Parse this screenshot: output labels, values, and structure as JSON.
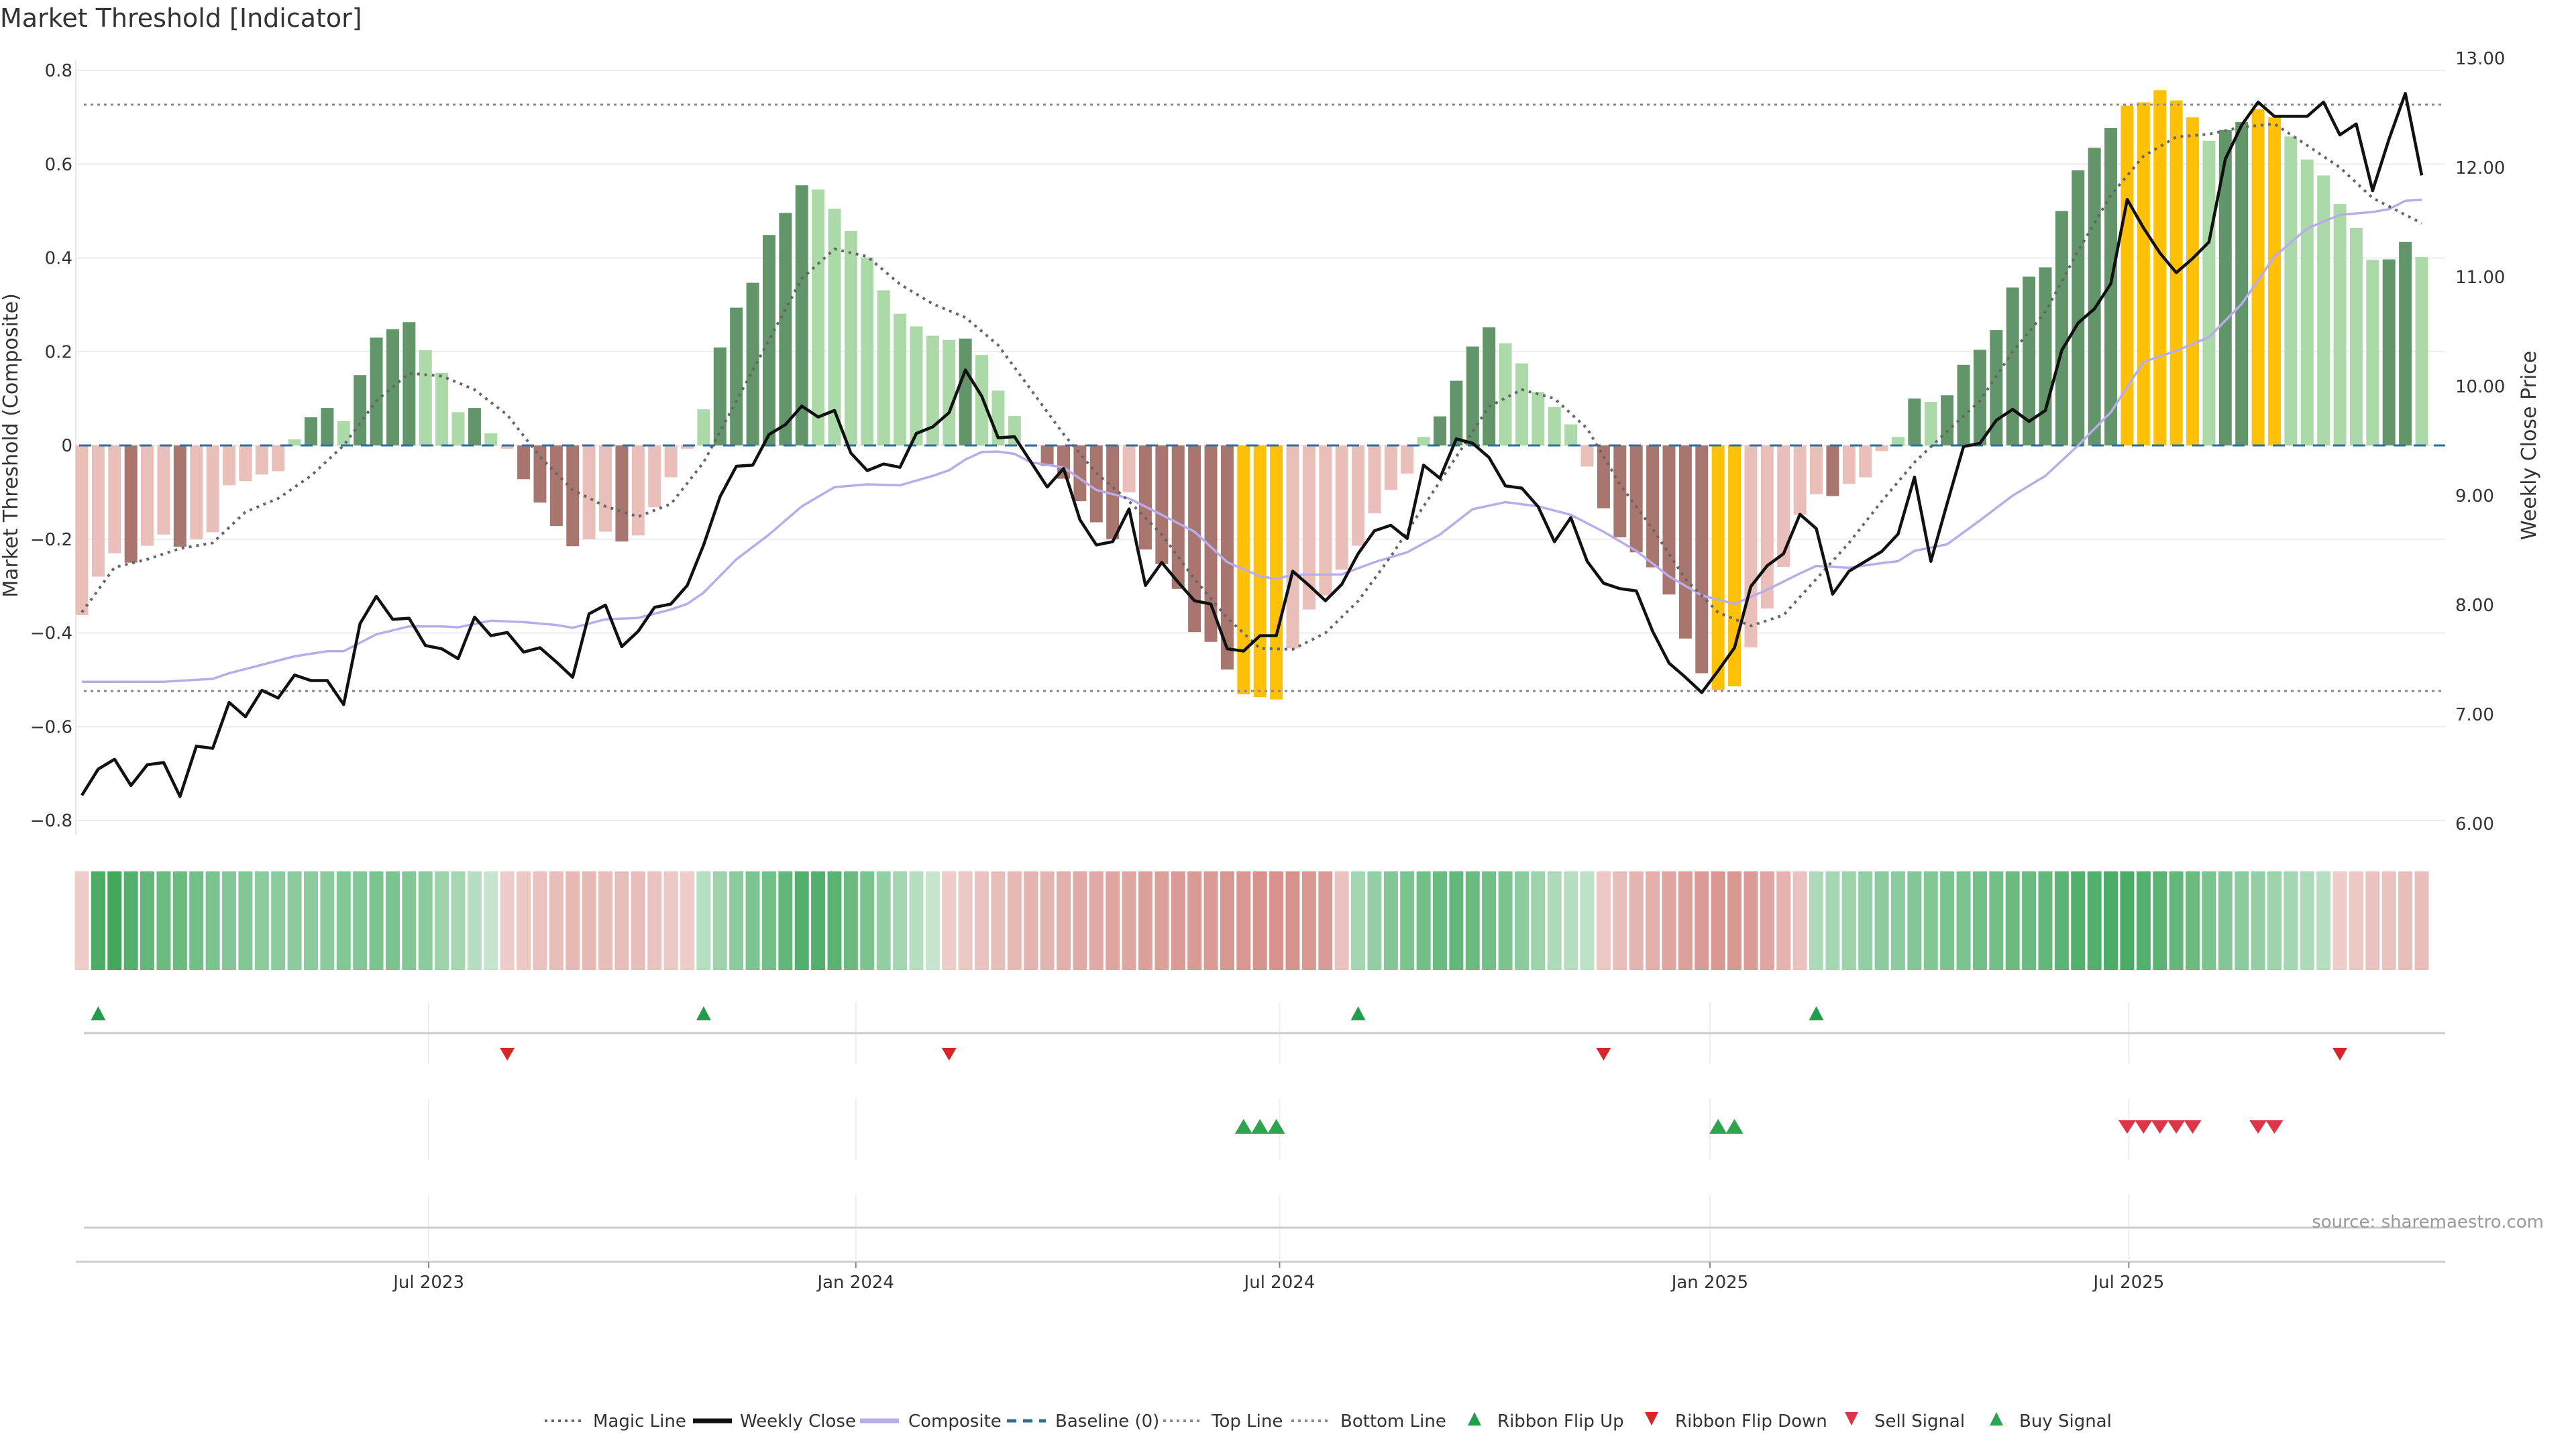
{
  "chart_data": {
    "type": "bar",
    "title": "Market Threshold [Indicator]",
    "ylabel": "Market Threshold (Composite)",
    "y2label": "Weekly Close Price",
    "ylim": [
      -0.8,
      0.8
    ],
    "y2lim": [
      6.0,
      13.0
    ],
    "y_ticks": [
      "0.8",
      "0.6",
      "0.4",
      "0.2",
      "0",
      "−0.2",
      "−0.4",
      "−0.6",
      "−0.8"
    ],
    "y_tick_values": [
      0.8,
      0.6,
      0.4,
      0.2,
      0,
      -0.2,
      -0.4,
      -0.6,
      -0.8
    ],
    "y2_ticks": [
      "13.00",
      "12.00",
      "11.00",
      "10.00",
      "9.00",
      "8.00",
      "7.00",
      "6.00"
    ],
    "y2_tick_values": [
      13,
      12,
      11,
      10,
      9,
      8,
      7,
      6
    ],
    "x_ticks": [
      {
        "label": "Jul 2023",
        "week": 21.2
      },
      {
        "label": "Jan 2024",
        "week": 47.3
      },
      {
        "label": "Jul 2024",
        "week": 73.2
      },
      {
        "label": "Jan 2025",
        "week": 99.5
      },
      {
        "label": "Jul 2025",
        "week": 125.1
      }
    ],
    "top_line": 0.727,
    "bottom_line": -0.524,
    "baseline": 0,
    "bar_values": [
      -0.362,
      -0.28,
      -0.23,
      -0.25,
      -0.214,
      -0.19,
      -0.216,
      -0.2,
      -0.185,
      -0.085,
      -0.076,
      -0.062,
      -0.055,
      0.013,
      0.06,
      0.08,
      0.052,
      0.15,
      0.23,
      0.248,
      0.263,
      0.203,
      0.155,
      0.071,
      0.08,
      0.026,
      -0.007,
      -0.072,
      -0.122,
      -0.172,
      -0.215,
      -0.2,
      -0.184,
      -0.205,
      -0.192,
      -0.132,
      -0.068,
      -0.007,
      0.077,
      0.209,
      0.294,
      0.347,
      0.449,
      0.496,
      0.555,
      0.546,
      0.505,
      0.458,
      0.401,
      0.331,
      0.281,
      0.254,
      0.234,
      0.225,
      0.228,
      0.193,
      0.117,
      0.063,
      -0.003,
      -0.044,
      -0.071,
      -0.119,
      -0.164,
      -0.2,
      -0.1,
      -0.222,
      -0.253,
      -0.306,
      -0.398,
      -0.419,
      -0.478,
      -0.531,
      -0.537,
      -0.542,
      -0.433,
      -0.35,
      -0.32,
      -0.265,
      -0.214,
      -0.145,
      -0.095,
      -0.06,
      0.018,
      0.062,
      0.138,
      0.211,
      0.252,
      0.218,
      0.175,
      0.114,
      0.082,
      0.045,
      -0.045,
      -0.134,
      -0.196,
      -0.228,
      -0.26,
      -0.318,
      -0.412,
      -0.486,
      -0.522,
      -0.514,
      -0.431,
      -0.348,
      -0.259,
      -0.148,
      -0.104,
      -0.108,
      -0.082,
      -0.068,
      -0.012,
      0.018,
      0.1,
      0.093,
      0.107,
      0.172,
      0.204,
      0.246,
      0.337,
      0.36,
      0.38,
      0.5,
      0.587,
      0.635,
      0.677,
      0.725,
      0.732,
      0.758,
      0.736,
      0.7,
      0.65,
      0.673,
      0.69,
      0.717,
      0.7,
      0.659,
      0.61,
      0.576,
      0.515,
      0.464,
      0.396,
      0.397,
      0.434,
      0.402
    ],
    "bar_classes": "rrrRrrRrrrrrrgGGgGGGGgggGgrRRRRrrRrrrrgGGGGGGgggggggggGgggrRRRRRrRRRRRRYYYrrrrrrrrgGGGGgggggrRRRRRRRYYrrrrrRrrrgGgGGGGGGGGGGGYYYYYgGGYYggggggGGg",
    "bar_class_colors": {
      "G": "#62956a",
      "g": "#acd9a8",
      "R": "#a9766f",
      "r": "#ebbfb9",
      "Y": "#ffc107"
    },
    "weekly_close": [
      6.26,
      6.5,
      6.59,
      6.35,
      6.54,
      6.56,
      6.25,
      6.71,
      6.69,
      7.11,
      6.98,
      7.22,
      7.15,
      7.36,
      7.31,
      7.31,
      7.09,
      7.83,
      8.08,
      7.87,
      7.88,
      7.63,
      7.6,
      7.51,
      7.89,
      7.72,
      7.75,
      7.57,
      7.61,
      7.48,
      7.34,
      7.92,
      8.0,
      7.62,
      7.76,
      7.98,
      8.01,
      8.18,
      8.55,
      8.99,
      9.27,
      9.28,
      9.56,
      9.65,
      9.82,
      9.72,
      9.78,
      9.39,
      9.23,
      9.29,
      9.26,
      9.57,
      9.63,
      9.76,
      10.15,
      9.91,
      9.53,
      9.54,
      9.31,
      9.08,
      9.25,
      8.78,
      8.55,
      8.58,
      8.88,
      8.18,
      8.39,
      8.21,
      8.04,
      8.01,
      7.6,
      7.58,
      7.72,
      7.72,
      8.31,
      8.18,
      8.04,
      8.19,
      8.47,
      8.68,
      8.73,
      8.61,
      9.28,
      9.16,
      9.52,
      9.48,
      9.35,
      9.09,
      9.07,
      8.9,
      8.58,
      8.8,
      8.4,
      8.2,
      8.15,
      8.13,
      7.76,
      7.47,
      7.34,
      7.2,
      7.4,
      7.61,
      8.17,
      8.36,
      8.47,
      8.83,
      8.7,
      8.1,
      8.31,
      8.4,
      8.49,
      8.65,
      9.17,
      8.4,
      8.93,
      9.45,
      9.48,
      9.69,
      9.79,
      9.68,
      9.78,
      10.33,
      10.58,
      10.71,
      10.94,
      11.71,
      11.45,
      11.22,
      11.04,
      11.17,
      11.32,
      12.08,
      12.39,
      12.6,
      12.47,
      12.47,
      12.47,
      12.6,
      12.3,
      12.4,
      11.79,
      12.26,
      12.68,
      11.93
    ],
    "magic_line": [
      [
        0,
        -0.356
      ],
      [
        2,
        -0.26
      ],
      [
        4,
        -0.243
      ],
      [
        6,
        -0.22
      ],
      [
        8,
        -0.208
      ],
      [
        10,
        -0.142
      ],
      [
        12,
        -0.113
      ],
      [
        14,
        -0.065
      ],
      [
        16,
        0
      ],
      [
        18,
        0.095
      ],
      [
        20,
        0.154
      ],
      [
        22,
        0.148
      ],
      [
        24,
        0.119
      ],
      [
        26,
        0.065
      ],
      [
        28,
        -0.024
      ],
      [
        30,
        -0.095
      ],
      [
        32,
        -0.13
      ],
      [
        34,
        -0.152
      ],
      [
        36,
        -0.125
      ],
      [
        38,
        -0.036
      ],
      [
        40,
        0.095
      ],
      [
        42,
        0.225
      ],
      [
        44,
        0.356
      ],
      [
        46,
        0.419
      ],
      [
        48,
        0.403
      ],
      [
        50,
        0.344
      ],
      [
        52,
        0.302
      ],
      [
        54,
        0.273
      ],
      [
        56,
        0.214
      ],
      [
        58,
        0.119
      ],
      [
        60,
        0.024
      ],
      [
        62,
        -0.059
      ],
      [
        64,
        -0.119
      ],
      [
        66,
        -0.19
      ],
      [
        68,
        -0.285
      ],
      [
        70,
        -0.368
      ],
      [
        72,
        -0.433
      ],
      [
        74,
        -0.435
      ],
      [
        76,
        -0.4
      ],
      [
        78,
        -0.332
      ],
      [
        80,
        -0.237
      ],
      [
        82,
        -0.13
      ],
      [
        84,
        -0.024
      ],
      [
        86,
        0.083
      ],
      [
        88,
        0.119
      ],
      [
        90,
        0.1
      ],
      [
        92,
        0.036
      ],
      [
        94,
        -0.083
      ],
      [
        96,
        -0.178
      ],
      [
        98,
        -0.285
      ],
      [
        100,
        -0.356
      ],
      [
        102,
        -0.385
      ],
      [
        104,
        -0.362
      ],
      [
        106,
        -0.285
      ],
      [
        108,
        -0.208
      ],
      [
        110,
        -0.119
      ],
      [
        112,
        -0.036
      ],
      [
        114,
        0.03
      ],
      [
        116,
        0.095
      ],
      [
        118,
        0.2
      ],
      [
        120,
        0.285
      ],
      [
        122,
        0.415
      ],
      [
        124,
        0.534
      ],
      [
        126,
        0.617
      ],
      [
        128,
        0.658
      ],
      [
        130,
        0.664
      ],
      [
        132,
        0.679
      ],
      [
        134,
        0.686
      ],
      [
        136,
        0.64
      ],
      [
        138,
        0.593
      ],
      [
        140,
        0.528
      ],
      [
        142,
        0.492
      ],
      [
        143,
        0.474
      ]
    ],
    "composite_line": [
      [
        0,
        -0.504
      ],
      [
        5,
        -0.504
      ],
      [
        7,
        -0.5
      ],
      [
        8,
        -0.498
      ],
      [
        9,
        -0.486
      ],
      [
        11,
        -0.468
      ],
      [
        13,
        -0.45
      ],
      [
        15,
        -0.439
      ],
      [
        16,
        -0.439
      ],
      [
        18,
        -0.403
      ],
      [
        20,
        -0.386
      ],
      [
        22,
        -0.386
      ],
      [
        23,
        -0.388
      ],
      [
        25,
        -0.374
      ],
      [
        27,
        -0.377
      ],
      [
        29,
        -0.383
      ],
      [
        30,
        -0.389
      ],
      [
        32,
        -0.371
      ],
      [
        34,
        -0.368
      ],
      [
        36,
        -0.35
      ],
      [
        37,
        -0.338
      ],
      [
        38,
        -0.314
      ],
      [
        40,
        -0.243
      ],
      [
        42,
        -0.19
      ],
      [
        44,
        -0.13
      ],
      [
        46,
        -0.089
      ],
      [
        48,
        -0.083
      ],
      [
        50,
        -0.085
      ],
      [
        52,
        -0.065
      ],
      [
        53,
        -0.053
      ],
      [
        54,
        -0.03
      ],
      [
        55,
        -0.014
      ],
      [
        56,
        -0.013
      ],
      [
        57,
        -0.018
      ],
      [
        58,
        -0.036
      ],
      [
        60,
        -0.047
      ],
      [
        62,
        -0.095
      ],
      [
        64,
        -0.113
      ],
      [
        66,
        -0.148
      ],
      [
        68,
        -0.184
      ],
      [
        70,
        -0.249
      ],
      [
        72,
        -0.279
      ],
      [
        73,
        -0.285
      ],
      [
        74,
        -0.276
      ],
      [
        77,
        -0.275
      ],
      [
        79,
        -0.249
      ],
      [
        81,
        -0.228
      ],
      [
        83,
        -0.19
      ],
      [
        85,
        -0.136
      ],
      [
        87,
        -0.121
      ],
      [
        89,
        -0.13
      ],
      [
        91,
        -0.148
      ],
      [
        93,
        -0.184
      ],
      [
        95,
        -0.225
      ],
      [
        97,
        -0.279
      ],
      [
        99,
        -0.32
      ],
      [
        101,
        -0.338
      ],
      [
        103,
        -0.308
      ],
      [
        105,
        -0.273
      ],
      [
        106,
        -0.257
      ],
      [
        108,
        -0.261
      ],
      [
        110,
        -0.251
      ],
      [
        111,
        -0.247
      ],
      [
        112,
        -0.225
      ],
      [
        114,
        -0.211
      ],
      [
        116,
        -0.16
      ],
      [
        118,
        -0.107
      ],
      [
        120,
        -0.065
      ],
      [
        122,
        0
      ],
      [
        124,
        0.071
      ],
      [
        126,
        0.178
      ],
      [
        128,
        0.202
      ],
      [
        130,
        0.231
      ],
      [
        132,
        0.302
      ],
      [
        134,
        0.403
      ],
      [
        136,
        0.463
      ],
      [
        138,
        0.492
      ],
      [
        140,
        0.498
      ],
      [
        141,
        0.504
      ],
      [
        142,
        0.522
      ],
      [
        143,
        0.524
      ]
    ],
    "ribbon": [
      -0.2,
      0.9,
      0.95,
      0.85,
      0.75,
      0.7,
      0.7,
      0.65,
      0.6,
      0.55,
      0.55,
      0.5,
      0.5,
      0.5,
      0.5,
      0.5,
      0.55,
      0.55,
      0.6,
      0.6,
      0.55,
      0.5,
      0.4,
      0.35,
      0.25,
      0.15,
      -0.2,
      -0.25,
      -0.3,
      -0.35,
      -0.4,
      -0.4,
      -0.35,
      -0.35,
      -0.35,
      -0.3,
      -0.25,
      -0.2,
      0.25,
      0.4,
      0.5,
      0.6,
      0.65,
      0.75,
      0.85,
      0.85,
      0.8,
      0.7,
      0.6,
      0.45,
      0.35,
      0.25,
      0.15,
      -0.2,
      -0.25,
      -0.3,
      -0.35,
      -0.4,
      -0.45,
      -0.45,
      -0.5,
      -0.55,
      -0.55,
      -0.6,
      -0.6,
      -0.65,
      -0.65,
      -0.7,
      -0.7,
      -0.7,
      -0.75,
      -0.75,
      -0.8,
      -0.8,
      -0.8,
      -0.75,
      -0.7,
      -0.3,
      0.35,
      0.45,
      0.55,
      0.6,
      0.65,
      0.7,
      0.75,
      0.7,
      0.65,
      0.6,
      0.5,
      0.4,
      0.3,
      0.25,
      0.2,
      -0.25,
      -0.35,
      -0.45,
      -0.5,
      -0.6,
      -0.65,
      -0.7,
      -0.75,
      -0.75,
      -0.7,
      -0.6,
      -0.45,
      -0.3,
      0.3,
      0.35,
      0.4,
      0.45,
      0.5,
      0.5,
      0.55,
      0.55,
      0.6,
      0.6,
      0.65,
      0.65,
      0.7,
      0.7,
      0.75,
      0.8,
      0.85,
      0.85,
      0.9,
      0.9,
      0.85,
      0.8,
      0.75,
      0.7,
      0.6,
      0.55,
      0.5,
      0.45,
      0.4,
      0.35,
      0.3,
      0.25,
      -0.2,
      -0.25,
      -0.3,
      -0.3,
      -0.35,
      -0.35
    ],
    "ribbon_flip_up": [
      1,
      38,
      78,
      106
    ],
    "ribbon_flip_down": [
      26,
      53,
      93,
      138
    ],
    "buy_signals": [
      71,
      72,
      73,
      100,
      101
    ],
    "sell_signals": [
      125,
      126,
      127,
      128,
      129,
      133,
      134
    ],
    "colors": {
      "price": "#111111",
      "magic": "#666666",
      "composite": "#b9acea",
      "baseline": "#2b6f9a",
      "topbottom": "#888888",
      "flip_up": "#1e9e4a",
      "flip_down": "#d62728",
      "sell": "#dc3545",
      "buy": "#2ea44f"
    },
    "legend": [
      "Magic Line",
      "Weekly Close",
      "Composite",
      "Baseline (0)",
      "Top Line",
      "Bottom Line",
      "Ribbon Flip Up",
      "Ribbon Flip Down",
      "Sell Signal",
      "Buy Signal"
    ],
    "legend_position": "bottom-center",
    "source": "source: sharemaestro.com"
  }
}
